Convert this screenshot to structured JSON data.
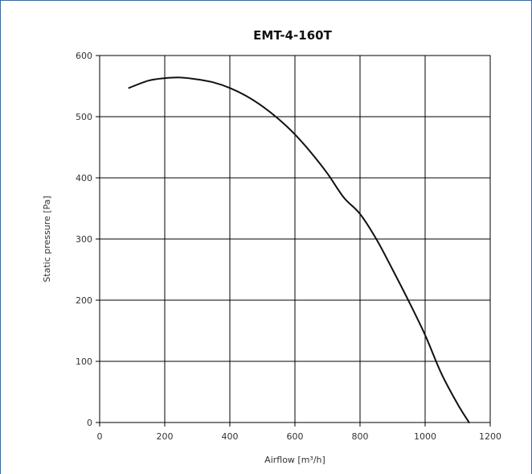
{
  "chart_data": {
    "type": "line",
    "title": "EMT-4-160T",
    "xlabel": "Airflow [m³/h]",
    "ylabel": "Static pressure [Pa]",
    "xlim": [
      0,
      1200
    ],
    "ylim": [
      0,
      600
    ],
    "x_ticks": [
      "0",
      "200",
      "400",
      "600",
      "800",
      "1000",
      "1200"
    ],
    "y_ticks": [
      "0",
      "100",
      "200",
      "300",
      "400",
      "500",
      "600"
    ],
    "grid": true,
    "series": [
      {
        "color": "#111111",
        "points": [
          [
            90,
            547
          ],
          [
            150,
            559
          ],
          [
            200,
            563
          ],
          [
            250,
            564
          ],
          [
            300,
            561
          ],
          [
            350,
            556
          ],
          [
            400,
            547
          ],
          [
            450,
            534
          ],
          [
            500,
            517
          ],
          [
            550,
            496
          ],
          [
            600,
            471
          ],
          [
            650,
            441
          ],
          [
            700,
            407
          ],
          [
            750,
            368
          ],
          [
            800,
            341
          ],
          [
            850,
            300
          ],
          [
            900,
            250
          ],
          [
            950,
            198
          ],
          [
            1000,
            143
          ],
          [
            1050,
            80
          ],
          [
            1100,
            30
          ],
          [
            1135,
            0
          ]
        ]
      }
    ]
  }
}
